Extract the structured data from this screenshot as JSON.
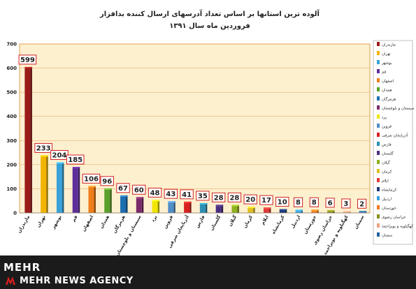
{
  "chart_data": {
    "type": "bar",
    "title": "آلوده ترین استانها بر اساس تعداد آدرسهای ارسال کننده بدافزار",
    "subtitle": "فروردین ماه سال ۱۳۹۱",
    "xlabel": "",
    "ylabel": "",
    "ylim": [
      0,
      700
    ],
    "yticks": [
      "0",
      "100",
      "200",
      "300",
      "400",
      "500",
      "600",
      "700"
    ],
    "grid": true,
    "legend_position": "right",
    "categories": [
      "مازندران",
      "تهران",
      "بوشهر",
      "قم",
      "اصفهان",
      "همدان",
      "هرمزگان",
      "سیستان و بلوچستان",
      "یزد",
      "قزوین",
      "آذربایجان شرقی",
      "فارس",
      "گلستان",
      "گیلان",
      "کرمان",
      "ایلام",
      "کرمانشاه",
      "اردبیل",
      "خوزستان",
      "خراسان رضوی",
      "کهگیلویه و بویراحمد",
      "سمنان"
    ],
    "values": [
      599,
      233,
      204,
      185,
      106,
      96,
      67,
      60,
      48,
      43,
      41,
      35,
      28,
      28,
      20,
      17,
      10,
      8,
      8,
      6,
      3,
      2
    ],
    "value_labels": [
      "599",
      "233",
      "204",
      "185",
      "106",
      "96",
      "67",
      "60",
      "48",
      "43",
      "41",
      "35",
      "28",
      "28",
      "20",
      "17",
      "10",
      "8",
      "8",
      "6",
      "3",
      "2"
    ],
    "colors": [
      "#9b1b1b",
      "#f2b400",
      "#3aa2d8",
      "#5e2f9a",
      "#ef7f1a",
      "#5aa02c",
      "#1e6fb0",
      "#7a2a6a",
      "#f2e600",
      "#4f8fc6",
      "#d92020",
      "#2b8fb3",
      "#4a2f80",
      "#8fb020",
      "#e0c020",
      "#e03a3a",
      "#1b3a7a",
      "#3aa0e0",
      "#f07a20",
      "#8a9020",
      "#f0a080",
      "#2060a0"
    ]
  },
  "branding": {
    "logo": "MEHR",
    "agency": "MEHR NEWS AGENCY"
  }
}
